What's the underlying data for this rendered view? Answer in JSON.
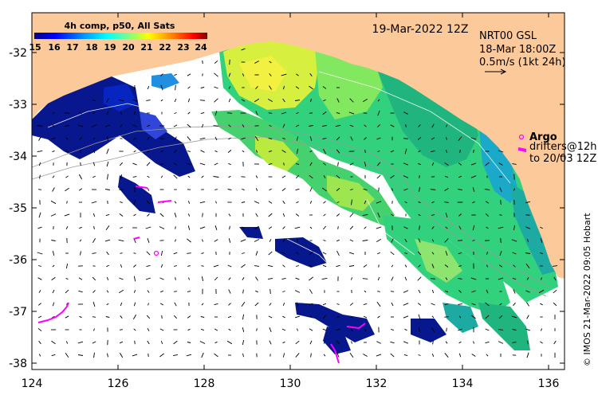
{
  "legend": {
    "title": "4h comp, p50, All Sats",
    "ticks": [
      "15",
      "16",
      "17",
      "18",
      "19",
      "20",
      "21",
      "22",
      "23",
      "24"
    ]
  },
  "header": {
    "date": "19-Mar-2022 12Z",
    "product": "NRT00 GSL",
    "time": "18-Mar 18:00Z",
    "scale_note": "0.5m/s (1kt 24h)"
  },
  "argo": {
    "title": "Argo",
    "line1": "drifters@12h",
    "line2": "to 20/03 12Z"
  },
  "credit": "© IMOS 21-Mar-2022 09:05 Hobart",
  "axes": {
    "x_ticks": [
      "124",
      "126",
      "128",
      "130",
      "132",
      "134",
      "136"
    ],
    "y_ticks": [
      "-32",
      "-33",
      "-34",
      "-35",
      "-36",
      "-37",
      "-38"
    ]
  },
  "colors": {
    "land": "#fcc99a",
    "colormap": [
      "#00007f",
      "#0000ff",
      "#007fff",
      "#00ffff",
      "#7fff7f",
      "#ffff00",
      "#ff7f00",
      "#ff0000",
      "#7f0000"
    ],
    "argo": "#ff00ff"
  }
}
